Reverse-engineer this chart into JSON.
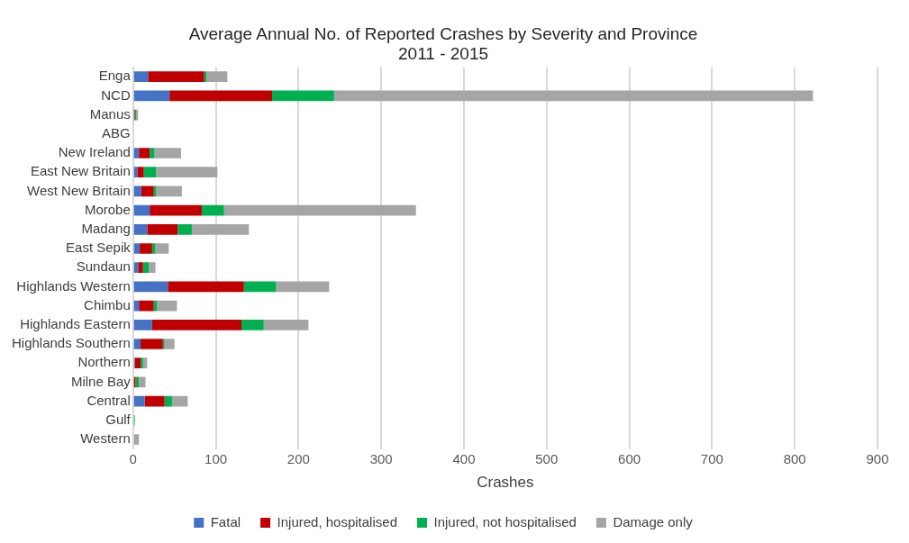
{
  "chart_data": {
    "type": "bar",
    "orientation": "horizontal",
    "stacked": true,
    "title": "Average Annual No. of Reported Crashes by Severity and Province",
    "subtitle": "2011 - 2015",
    "xlabel": "Crashes",
    "categories": [
      "Enga",
      "NCD",
      "Manus",
      "ABG",
      "New Ireland",
      "East New Britain",
      "West New Britain",
      "Morobe",
      "Madang",
      "East Sepik",
      "Sundaun",
      "Highlands Western",
      "Chimbu",
      "Highlands Eastern",
      "Highlands Southern",
      "Northern",
      "Milne Bay",
      "Central",
      "Gulf",
      "Western"
    ],
    "series": [
      {
        "name": "Fatal",
        "color": "#4472c4",
        "values": [
          18,
          44,
          0,
          0,
          7,
          5,
          10,
          20,
          17,
          8,
          6,
          42,
          7,
          23,
          9,
          2,
          null,
          14,
          0,
          0
        ]
      },
      {
        "name": "Injured, hospitalised",
        "color": "#c00000",
        "values": [
          68,
          124,
          2,
          0,
          13,
          8,
          15,
          63,
          37,
          15,
          6,
          92,
          18,
          108,
          27,
          7,
          3,
          24,
          0,
          0
        ]
      },
      {
        "name": "Injured, not hospitalised",
        "color": "#00b050",
        "values": [
          3,
          75,
          2,
          0,
          6,
          15,
          3,
          27,
          17,
          4,
          7,
          39,
          4,
          27,
          2,
          3,
          4,
          9,
          2,
          null
        ]
      },
      {
        "name": "Damage only",
        "color": "#a5a5a5",
        "values": [
          25,
          579,
          2,
          0,
          32,
          74,
          31,
          232,
          69,
          16,
          8,
          64,
          24,
          54,
          12,
          5,
          8,
          19,
          0,
          7
        ]
      }
    ],
    "xlim": [
      0,
      900
    ],
    "xticks": [
      0,
      100,
      200,
      300,
      400,
      500,
      600,
      700,
      800,
      900
    ],
    "grid": "x",
    "legend": "bottom"
  }
}
